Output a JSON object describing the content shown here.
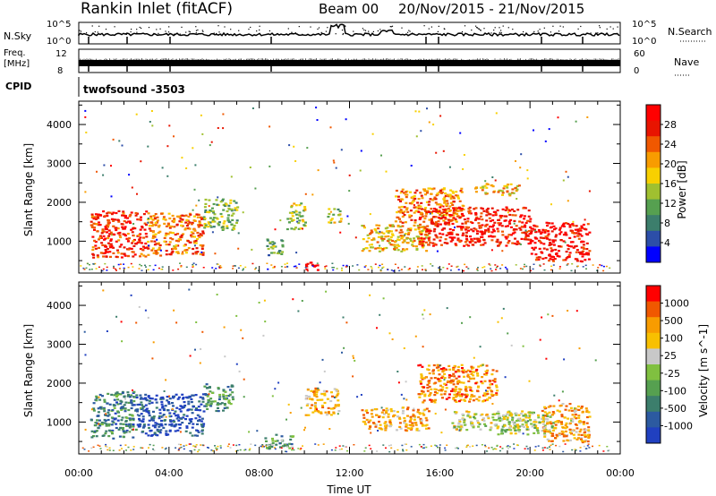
{
  "header": {
    "station": "Rankin Inlet (fitACF)",
    "beam": "Beam 00",
    "date_range": "20/Nov/2015 - 21/Nov/2015"
  },
  "status_panels": {
    "nsky": {
      "label": "N.Sky",
      "ticks": [
        "10^5",
        "10^0"
      ],
      "right_label": "N.Search",
      "right_ticks": [
        "10^5",
        "10^0"
      ]
    },
    "freq": {
      "label_line1": "Freq.",
      "label_line2": "[MHz]",
      "ticks": [
        "12",
        "8"
      ],
      "right_label": "Nave",
      "right_ticks": [
        "60",
        "0"
      ]
    },
    "cpid": {
      "label": "CPID",
      "value": "twofsound -3503"
    }
  },
  "chart_data": [
    {
      "type": "heatmap",
      "parameter": "Power",
      "ylabel": "Slant Range [km]",
      "ylim": [
        180,
        4600
      ],
      "yticks": [
        "1000",
        "2000",
        "3000",
        "4000"
      ],
      "colorbar": {
        "label": "Power [dB]",
        "range": [
          0,
          32
        ],
        "ticks": [
          "4",
          "8",
          "12",
          "16",
          "20",
          "24",
          "28"
        ],
        "colors": [
          "#0000ff",
          "#2c4ea8",
          "#3c7e6c",
          "#56a050",
          "#a0c030",
          "#f8d000",
          "#f89c00",
          "#f05800",
          "#e81400",
          "#ff0000"
        ]
      },
      "echo_regions": [
        {
          "t": [
            0.5,
            3.0
          ],
          "r": [
            600,
            1800
          ],
          "level": 0.85
        },
        {
          "t": [
            3.0,
            5.5
          ],
          "r": [
            650,
            1750
          ],
          "level": 0.72
        },
        {
          "t": [
            5.5,
            7.0
          ],
          "r": [
            1300,
            2100
          ],
          "level": 0.4
        },
        {
          "t": [
            8.3,
            9.0
          ],
          "r": [
            600,
            1100
          ],
          "level": 0.35
        },
        {
          "t": [
            9.2,
            10.0
          ],
          "r": [
            1300,
            2000
          ],
          "level": 0.45
        },
        {
          "t": [
            9.8,
            10.6
          ],
          "r": [
            280,
            480
          ],
          "level": 0.95
        },
        {
          "t": [
            11.0,
            11.6
          ],
          "r": [
            1500,
            1900
          ],
          "level": 0.45
        },
        {
          "t": [
            12.5,
            15.5
          ],
          "r": [
            750,
            1450
          ],
          "level": 0.6
        },
        {
          "t": [
            14.0,
            17.0
          ],
          "r": [
            1500,
            2400
          ],
          "level": 0.7
        },
        {
          "t": [
            15.0,
            20.0
          ],
          "r": [
            900,
            1900
          ],
          "level": 0.88
        },
        {
          "t": [
            20.0,
            22.6
          ],
          "r": [
            500,
            1500
          ],
          "level": 0.92
        },
        {
          "t": [
            17.5,
            19.5
          ],
          "r": [
            2200,
            2500
          ],
          "level": 0.6
        }
      ]
    },
    {
      "type": "heatmap",
      "parameter": "Velocity",
      "ylabel": "Slant Range [km]",
      "xlabel": "Time UT",
      "ylim": [
        180,
        4600
      ],
      "yticks": [
        "1000",
        "2000",
        "3000",
        "4000"
      ],
      "xlim": [
        0,
        24
      ],
      "xticks": [
        "00:00",
        "04:00",
        "08:00",
        "12:00",
        "16:00",
        "20:00",
        "00:00"
      ],
      "colorbar": {
        "label": "Velocity [m s^-1]",
        "range": [
          -1200,
          1200
        ],
        "ticks": [
          "1000",
          "500",
          "100",
          "25",
          "-25",
          "-100",
          "-500",
          "-1000"
        ],
        "colors": [
          "#2040c0",
          "#2c5aa0",
          "#3c7e6c",
          "#56a050",
          "#80c040",
          "#c8c8c8",
          "#f8c000",
          "#f89c00",
          "#f05800",
          "#ff0000"
        ]
      },
      "echo_regions": [
        {
          "t": [
            0.5,
            2.5
          ],
          "r": [
            600,
            1800
          ],
          "level": 0.25
        },
        {
          "t": [
            2.5,
            5.5
          ],
          "r": [
            650,
            1750
          ],
          "level": 0.08
        },
        {
          "t": [
            5.5,
            6.8
          ],
          "r": [
            1300,
            2000
          ],
          "level": 0.32
        },
        {
          "t": [
            8.2,
            9.5
          ],
          "r": [
            300,
            700
          ],
          "level": 0.35
        },
        {
          "t": [
            10.0,
            11.5
          ],
          "r": [
            1200,
            1900
          ],
          "level": 0.68
        },
        {
          "t": [
            12.5,
            15.5
          ],
          "r": [
            800,
            1400
          ],
          "level": 0.72
        },
        {
          "t": [
            15.0,
            18.5
          ],
          "r": [
            1500,
            2500
          ],
          "level": 0.78
        },
        {
          "t": [
            16.5,
            20.0
          ],
          "r": [
            800,
            1300
          ],
          "level": 0.55
        },
        {
          "t": [
            18.5,
            21.0
          ],
          "r": [
            700,
            1300
          ],
          "level": 0.5
        },
        {
          "t": [
            20.5,
            22.6
          ],
          "r": [
            500,
            1500
          ],
          "level": 0.72
        }
      ]
    }
  ]
}
